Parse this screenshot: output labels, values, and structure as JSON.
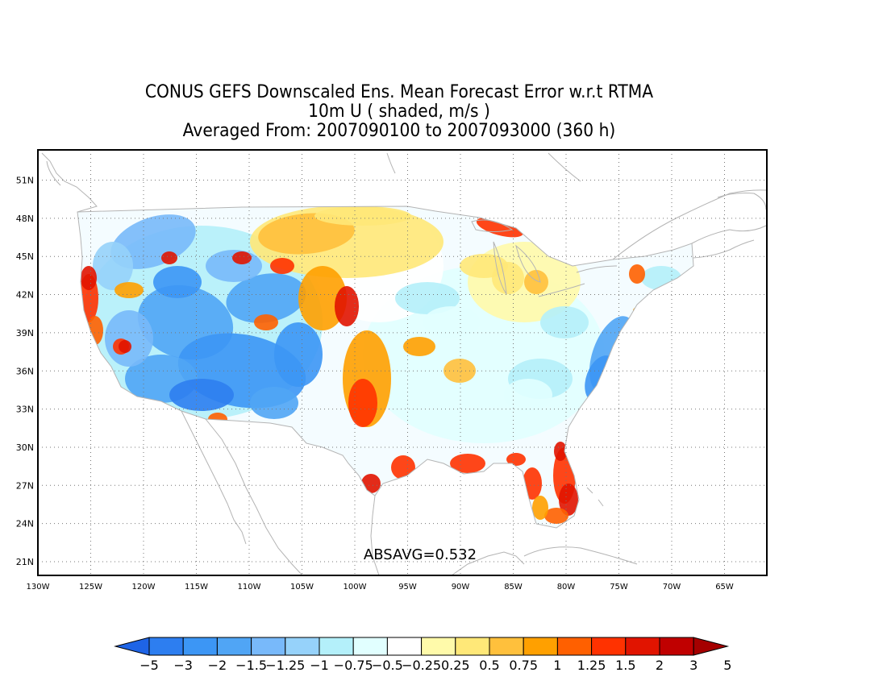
{
  "header": {
    "title_line1": "CONUS GEFS Downscaled Ens. Mean Forecast Error w.r.t RTMA",
    "title_line2": "10m U ( shaded, m/s )",
    "title_line3": "Averaged From: 2007090100 to 2007093000 (360 h)"
  },
  "map": {
    "lat_labels": [
      "51N",
      "48N",
      "45N",
      "42N",
      "39N",
      "36N",
      "33N",
      "30N",
      "27N",
      "24N",
      "21N"
    ],
    "lon_labels": [
      "130W",
      "125W",
      "120W",
      "115W",
      "110W",
      "105W",
      "100W",
      "95W",
      "90W",
      "85W",
      "80W",
      "75W",
      "70W",
      "65W"
    ],
    "absavg_text": "ABSAVG=0.532",
    "coastline_color": "#b4b4b4",
    "grid_color": "#777777"
  },
  "colorbar": {
    "colors": [
      "#1e64e6",
      "#2d7ef0",
      "#3c96f5",
      "#50a5f5",
      "#78b9fa",
      "#96d2fa",
      "#b4f0fa",
      "#e1ffff",
      "#ffffff",
      "#fffaaa",
      "#ffe878",
      "#ffc03c",
      "#ffa000",
      "#ff6000",
      "#ff3200",
      "#e11400",
      "#c00000",
      "#a50000"
    ],
    "labels": [
      "−5",
      "−3",
      "−2",
      "−1.5",
      "−1.25",
      "−1",
      "−0.75",
      "−0.5",
      "−0.25",
      "0.25",
      "0.5",
      "0.75",
      "1",
      "1.25",
      "1.5",
      "2",
      "3",
      "5"
    ]
  }
}
